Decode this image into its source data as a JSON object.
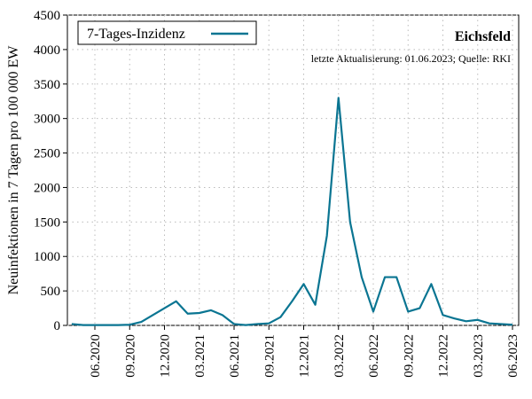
{
  "chart_data": {
    "type": "line",
    "title": "Eichsfeld",
    "subtitle": "letzte Aktualisierung: 01.06.2023; Quelle: RKI",
    "y_label": "Neuinfektionen in 7 Tagen pro 100 000 EW",
    "x": [
      "04.2020",
      "05.2020",
      "06.2020",
      "07.2020",
      "08.2020",
      "09.2020",
      "10.2020",
      "11.2020",
      "12.2020",
      "01.2021",
      "02.2021",
      "03.2021",
      "04.2021",
      "05.2021",
      "06.2021",
      "07.2021",
      "08.2021",
      "09.2021",
      "10.2021",
      "11.2021",
      "12.2021",
      "01.2022",
      "02.2022",
      "03.2022",
      "04.2022",
      "05.2022",
      "06.2022",
      "07.2022",
      "08.2022",
      "09.2022",
      "10.2022",
      "11.2022",
      "12.2022",
      "01.2023",
      "02.2023",
      "03.2023",
      "04.2023",
      "05.2023",
      "06.2023"
    ],
    "series": [
      {
        "name": "7-Tages-Inzidenz",
        "color": "#0a7592",
        "values": [
          20,
          5,
          5,
          5,
          5,
          10,
          50,
          150,
          250,
          350,
          170,
          180,
          220,
          150,
          20,
          5,
          20,
          30,
          120,
          350,
          600,
          300,
          1300,
          3300,
          1500,
          700,
          200,
          700,
          700,
          200,
          250,
          600,
          150,
          100,
          60,
          80,
          30,
          20,
          10
        ]
      }
    ],
    "xticks": [
      "06.2020",
      "09.2020",
      "12.2020",
      "03.2021",
      "06.2021",
      "09.2021",
      "12.2021",
      "03.2022",
      "06.2022",
      "09.2022",
      "12.2022",
      "03.2023",
      "06.2023"
    ],
    "ylim": [
      0,
      4500
    ],
    "yticks": [
      0,
      500,
      1000,
      1500,
      2000,
      2500,
      3000,
      3500,
      4000,
      4500
    ],
    "grid": true,
    "legend": "upper left"
  }
}
